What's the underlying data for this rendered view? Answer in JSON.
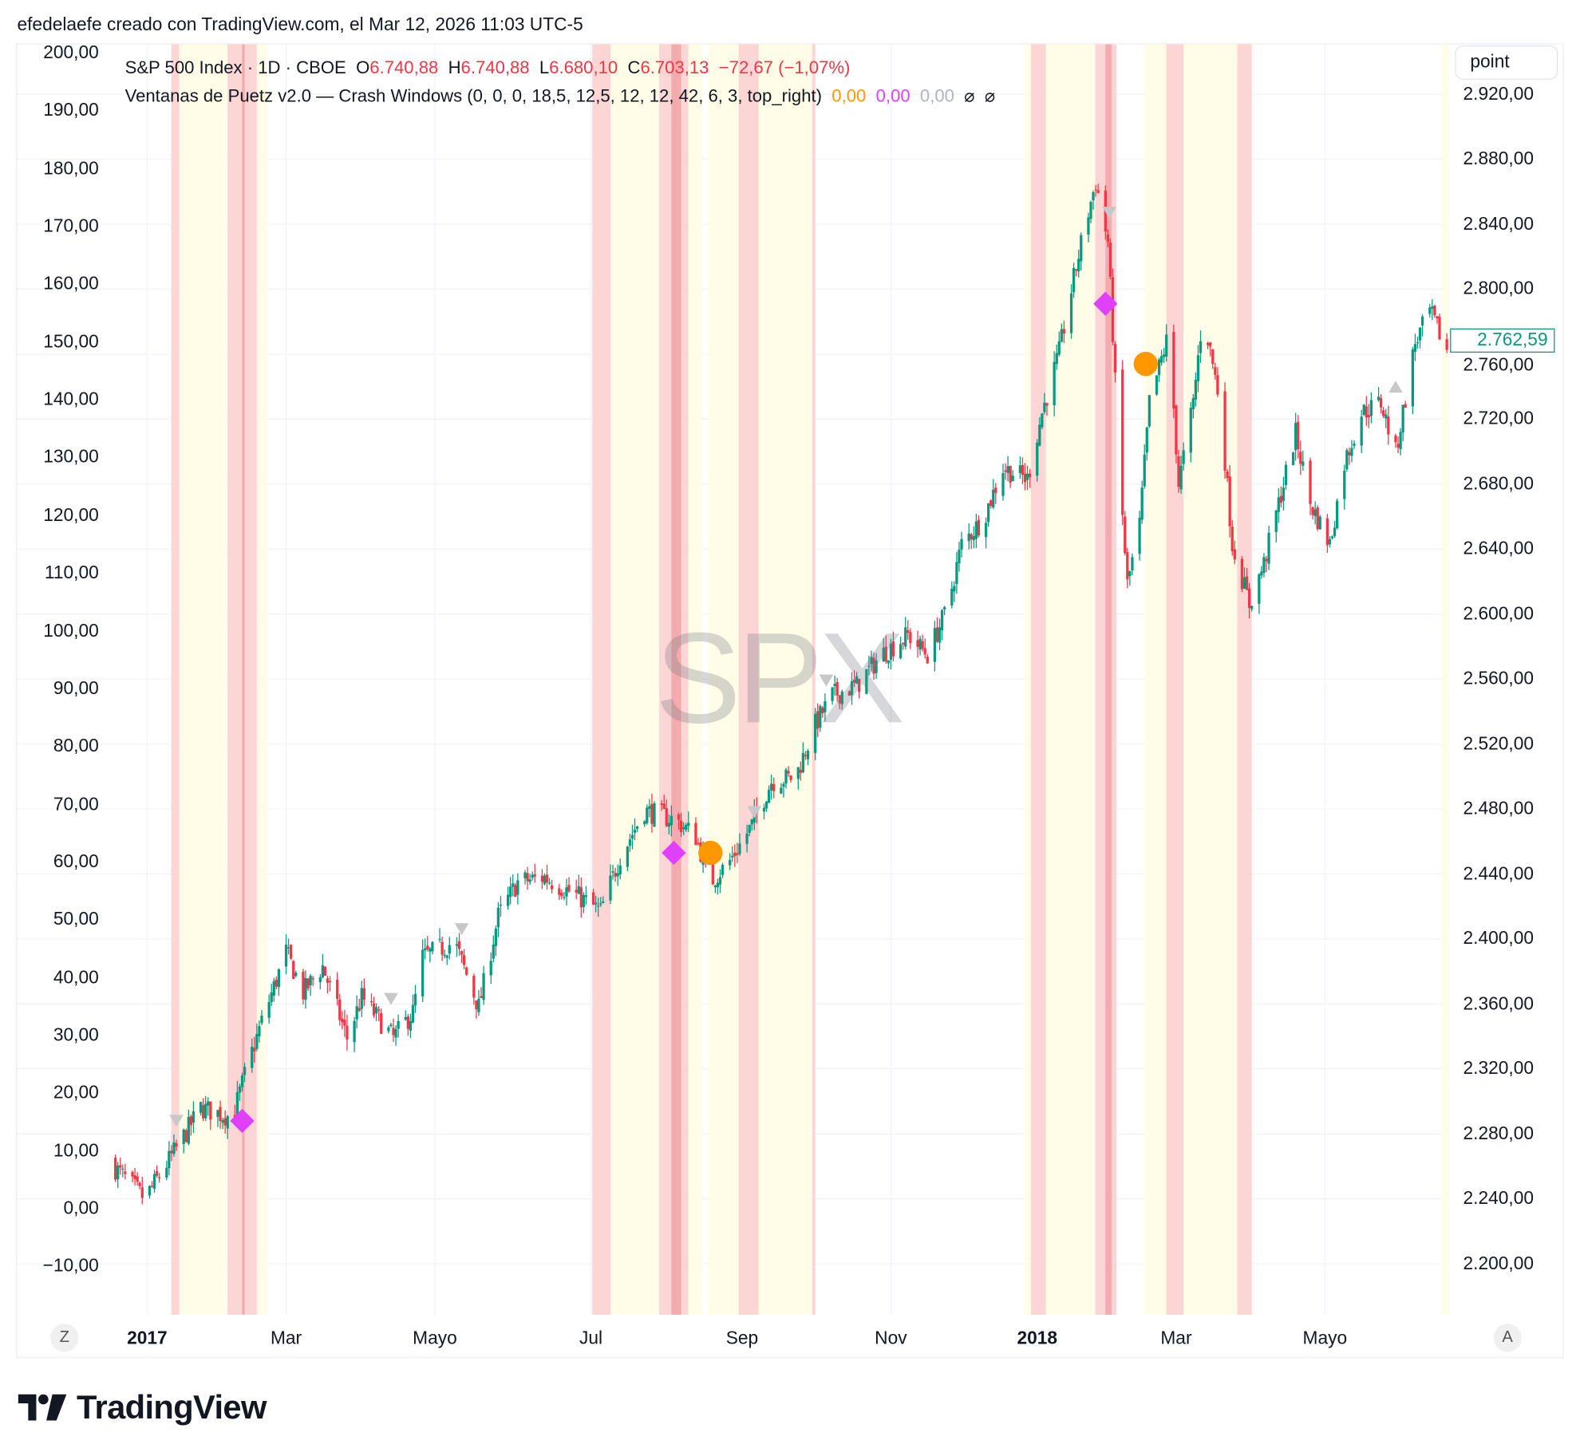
{
  "header": {
    "caption": "efedelaefe creado con TradingView.com, el Mar 12, 2026 11:03 UTC-5"
  },
  "legend": {
    "symbol": "S&P 500 Index · 1D · CBOE",
    "o_label": "O",
    "o": "6.740,88",
    "h_label": "H",
    "h": "6.740,88",
    "l_label": "L",
    "l": "6.680,10",
    "c_label": "C",
    "c": "6.703,13",
    "change": "−72,67 (−1,07%)",
    "indicator": "Ventanas de Puetz v2.0 — Crash Windows (0, 0, 0, 18,5, 12,5, 12, 12, 42, 6, 3, top_right)",
    "ind_v1": "0,00",
    "ind_v2": "0,00",
    "ind_v3": "0,00",
    "ind_v4": "⌀",
    "ind_v5": "⌀"
  },
  "watermark": "SPX",
  "scale_button": "point",
  "last_price": "2.762,59",
  "nav": {
    "left": "Z",
    "right": "A"
  },
  "brand": "TradingView",
  "colors": {
    "up": "#089981",
    "down": "#f23645",
    "window_pink": "#fcd5d5",
    "window_yellow": "#fffde7",
    "window_dark": "#f0a0a4",
    "diamond": "#e040fb",
    "circle": "#ff9800",
    "triangle": "#c8c8c8"
  },
  "chart_data": {
    "type": "candlestick",
    "title": "S&P 500 Index · 1D · CBOE",
    "x_unit": "calendar days since 2017-01-01",
    "left_axis": {
      "ticks": [
        "200,00",
        "190,00",
        "180,00",
        "170,00",
        "160,00",
        "150,00",
        "140,00",
        "130,00",
        "120,00",
        "110,00",
        "100,00",
        "90,00",
        "80,00",
        "70,00",
        "60,00",
        "50,00",
        "40,00",
        "30,00",
        "20,00",
        "10,00",
        "0,00",
        "−10,00"
      ]
    },
    "right_axis": {
      "ticks": [
        "2.920,00",
        "2.880,00",
        "2.840,00",
        "2.800,00",
        "2.760,00",
        "2.720,00",
        "2.680,00",
        "2.640,00",
        "2.600,00",
        "2.560,00",
        "2.520,00",
        "2.480,00",
        "2.440,00",
        "2.400,00",
        "2.360,00",
        "2.320,00",
        "2.280,00",
        "2.240,00",
        "2.200,00"
      ],
      "range": [
        2160,
        2920
      ]
    },
    "time_axis": [
      {
        "label": "2017",
        "day": 0,
        "bold": true
      },
      {
        "label": "Mar",
        "day": 57
      },
      {
        "label": "Mayo",
        "day": 118
      },
      {
        "label": "Jul",
        "day": 182
      },
      {
        "label": "Sep",
        "day": 244
      },
      {
        "label": "Nov",
        "day": 305
      },
      {
        "label": "2018",
        "day": 365,
        "bold": true
      },
      {
        "label": "Mar",
        "day": 422
      },
      {
        "label": "Mayo",
        "day": 483
      }
    ],
    "close_path": [
      [
        -15,
        2262
      ],
      [
        -1,
        2240
      ],
      [
        12,
        2271
      ],
      [
        22,
        2296
      ],
      [
        35,
        2290
      ],
      [
        41,
        2321
      ],
      [
        47,
        2349
      ],
      [
        57,
        2392
      ],
      [
        64,
        2367
      ],
      [
        72,
        2383
      ],
      [
        82,
        2339
      ],
      [
        88,
        2364
      ],
      [
        101,
        2339
      ],
      [
        109,
        2355
      ],
      [
        113,
        2389
      ],
      [
        126,
        2398
      ],
      [
        136,
        2358
      ],
      [
        144,
        2414
      ],
      [
        152,
        2435
      ],
      [
        163,
        2438
      ],
      [
        177,
        2426
      ],
      [
        186,
        2417
      ],
      [
        194,
        2451
      ],
      [
        204,
        2479
      ],
      [
        217,
        2473
      ],
      [
        225,
        2463
      ],
      [
        231,
        2435
      ],
      [
        239,
        2448
      ],
      [
        248,
        2470
      ],
      [
        256,
        2497
      ],
      [
        266,
        2500
      ],
      [
        274,
        2532
      ],
      [
        281,
        2550
      ],
      [
        291,
        2556
      ],
      [
        301,
        2575
      ],
      [
        312,
        2587
      ],
      [
        320,
        2575
      ],
      [
        328,
        2603
      ],
      [
        334,
        2643
      ],
      [
        343,
        2659
      ],
      [
        351,
        2690
      ],
      [
        361,
        2683
      ],
      [
        367,
        2724
      ],
      [
        374,
        2761
      ],
      [
        378,
        2792
      ],
      [
        384,
        2835
      ],
      [
        389,
        2866
      ],
      [
        394,
        2829
      ],
      [
        396,
        2773
      ],
      [
        399,
        2680
      ],
      [
        402,
        2618
      ],
      [
        407,
        2655
      ],
      [
        411,
        2730
      ],
      [
        419,
        2773
      ],
      [
        423,
        2680
      ],
      [
        429,
        2730
      ],
      [
        433,
        2786
      ],
      [
        440,
        2730
      ],
      [
        445,
        2643
      ],
      [
        452,
        2606
      ],
      [
        458,
        2631
      ],
      [
        464,
        2668
      ],
      [
        471,
        2711
      ],
      [
        477,
        2668
      ],
      [
        485,
        2643
      ],
      [
        491,
        2693
      ],
      [
        498,
        2724
      ],
      [
        506,
        2730
      ],
      [
        512,
        2699
      ],
      [
        520,
        2767
      ],
      [
        526,
        2786
      ],
      [
        533,
        2762.59
      ]
    ],
    "windows": [
      {
        "kind": "pink",
        "from": 9.9,
        "to": 13.2
      },
      {
        "kind": "yellow",
        "from": 13.2,
        "to": 33
      },
      {
        "kind": "pink",
        "from": 33,
        "to": 45
      },
      {
        "kind": "yellow",
        "from": 45,
        "to": 49.2
      },
      {
        "kind": "pink",
        "from": 182.6,
        "to": 190
      },
      {
        "kind": "yellow",
        "from": 190,
        "to": 210
      },
      {
        "kind": "pink",
        "from": 210,
        "to": 222
      },
      {
        "kind": "yellow",
        "from": 222,
        "to": 227.7
      },
      {
        "kind": "yellow",
        "from": 230,
        "to": 242.6
      },
      {
        "kind": "pink",
        "from": 242.6,
        "to": 250.8
      },
      {
        "kind": "yellow",
        "from": 250.8,
        "to": 272.7
      },
      {
        "kind": "pink",
        "from": 272.7,
        "to": 274
      },
      {
        "kind": "yellow",
        "from": 360,
        "to": 362.4
      },
      {
        "kind": "pink",
        "from": 362.4,
        "to": 368.6
      },
      {
        "kind": "yellow",
        "from": 368.6,
        "to": 388.8
      },
      {
        "kind": "pink",
        "from": 388.8,
        "to": 397.5
      },
      {
        "kind": "yellow",
        "from": 409,
        "to": 418
      },
      {
        "kind": "pink",
        "from": 418,
        "to": 425
      },
      {
        "kind": "yellow",
        "from": 425,
        "to": 447
      },
      {
        "kind": "pink",
        "from": 447,
        "to": 453
      },
      {
        "kind": "yellow",
        "from": 531,
        "to": 534
      },
      {
        "kind": "dark",
        "from": 38.9,
        "to": 40
      },
      {
        "kind": "dark",
        "from": 215,
        "to": 219
      },
      {
        "kind": "dark",
        "from": 393,
        "to": 395.5
      }
    ],
    "markers": [
      {
        "shape": "triangle-down",
        "day": 12,
        "price": 2288
      },
      {
        "shape": "triangle-down",
        "day": 100,
        "price": 2363
      },
      {
        "shape": "triangle-down",
        "day": 129,
        "price": 2406
      },
      {
        "shape": "triangle-down",
        "day": 249,
        "price": 2478
      },
      {
        "shape": "triangle-down",
        "day": 278.5,
        "price": 2559
      },
      {
        "shape": "triangle-down",
        "day": 394.6,
        "price": 2847
      },
      {
        "shape": "triangle-up",
        "day": 512,
        "price": 2740
      },
      {
        "shape": "diamond",
        "day": 39,
        "price": 2288
      },
      {
        "shape": "diamond",
        "day": 216,
        "price": 2453
      },
      {
        "shape": "diamond",
        "day": 393,
        "price": 2791
      },
      {
        "shape": "circle",
        "day": 231,
        "price": 2453
      },
      {
        "shape": "circle",
        "day": 409.5,
        "price": 2754
      }
    ]
  }
}
